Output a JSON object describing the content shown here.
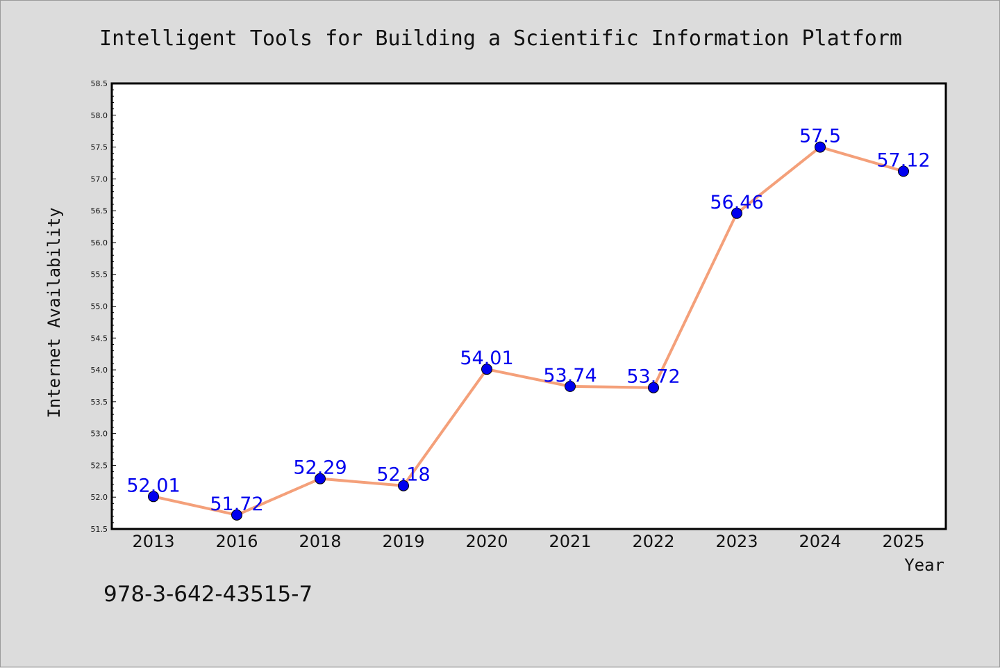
{
  "chart_data": {
    "type": "line",
    "title": "Intelligent Tools for Building a Scientific Information Platform",
    "xlabel": "Year",
    "ylabel": "Internet Availability",
    "categories": [
      "2013",
      "2016",
      "2018",
      "2019",
      "2020",
      "2021",
      "2022",
      "2023",
      "2024",
      "2025"
    ],
    "series": [
      {
        "values": [
          52.01,
          51.72,
          52.29,
          52.18,
          54.01,
          53.74,
          53.72,
          56.46,
          57.5,
          57.12
        ],
        "labels": [
          "52.01",
          "51.72",
          "52.29",
          "52.18",
          "54.01",
          "53.74",
          "53.72",
          "56.46",
          "57.5",
          "57.12"
        ],
        "line_color": "#f4a07a",
        "marker_color": "#0000ee"
      }
    ],
    "ylim": [
      51.5,
      58.5
    ],
    "yticks": [
      "51.5",
      "52.0",
      "52.5",
      "53.0",
      "53.5",
      "54.0",
      "54.5",
      "55.0",
      "55.5",
      "56.0",
      "56.5",
      "57.0",
      "57.5",
      "58.0",
      "58.5"
    ],
    "grid": false,
    "legend": "none",
    "footer_text": "978-3-642-43515-7"
  }
}
